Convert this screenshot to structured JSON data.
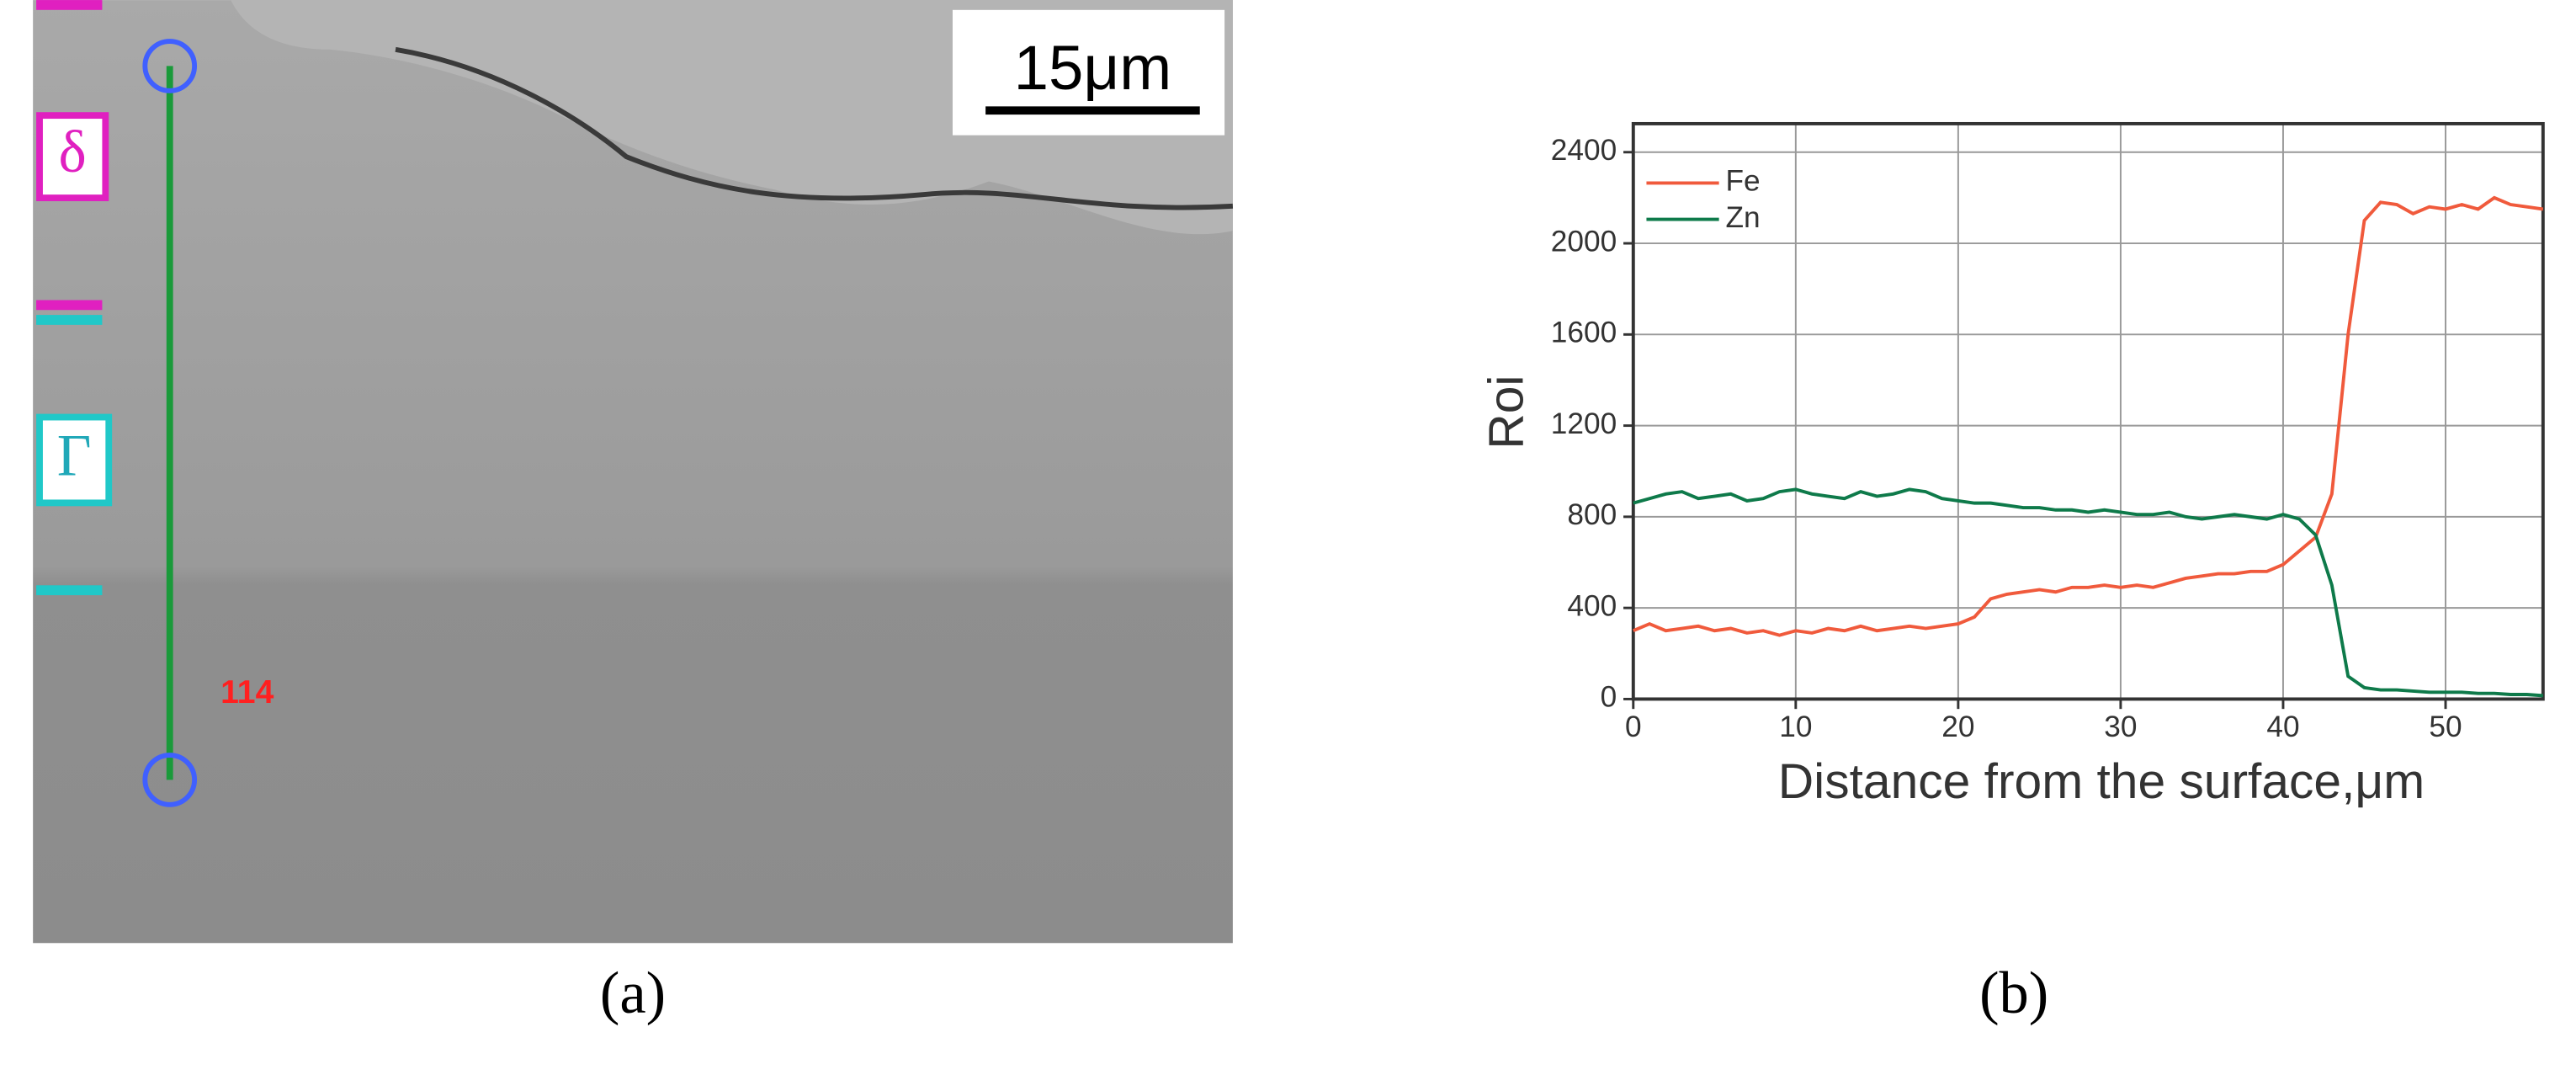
{
  "panel_a": {
    "scale_bar": "15μm",
    "phase_1": "δ",
    "phase_2": "Γ",
    "marker": "114",
    "caption": "(a)"
  },
  "chart_data": {
    "type": "line",
    "caption": "(b)",
    "x_label": "Distance from the surface,μm",
    "y_label": "Roi",
    "x": [
      0,
      1,
      2,
      3,
      4,
      5,
      6,
      7,
      8,
      9,
      10,
      11,
      12,
      13,
      14,
      15,
      16,
      17,
      18,
      19,
      20,
      21,
      22,
      23,
      24,
      25,
      26,
      27,
      28,
      29,
      30,
      31,
      32,
      33,
      34,
      35,
      36,
      37,
      38,
      39,
      40,
      41,
      42,
      43,
      44,
      45,
      46,
      47,
      48,
      49,
      50,
      51,
      52,
      53,
      54,
      55,
      56
    ],
    "series": [
      {
        "name": "Fe",
        "color": "#f05a3c",
        "values": [
          300,
          330,
          300,
          310,
          320,
          300,
          310,
          290,
          300,
          280,
          300,
          290,
          310,
          300,
          320,
          300,
          310,
          320,
          310,
          320,
          330,
          360,
          440,
          460,
          470,
          480,
          470,
          490,
          490,
          500,
          490,
          500,
          490,
          510,
          530,
          540,
          550,
          550,
          560,
          560,
          590,
          650,
          710,
          900,
          1600,
          2100,
          2180,
          2170,
          2130,
          2160,
          2150,
          2170,
          2150,
          2200,
          2170,
          2160,
          2150
        ]
      },
      {
        "name": "Zn",
        "color": "#0e7a4a",
        "values": [
          860,
          880,
          900,
          910,
          880,
          890,
          900,
          870,
          880,
          910,
          920,
          900,
          890,
          880,
          910,
          890,
          900,
          920,
          910,
          880,
          870,
          860,
          860,
          850,
          840,
          840,
          830,
          830,
          820,
          830,
          820,
          810,
          810,
          820,
          800,
          790,
          800,
          810,
          800,
          790,
          810,
          790,
          720,
          500,
          100,
          50,
          40,
          40,
          35,
          30,
          30,
          30,
          25,
          25,
          20,
          20,
          15
        ]
      }
    ],
    "xlim": [
      0,
      56
    ],
    "ylim": [
      0,
      2525
    ],
    "xticks": [
      0,
      10,
      20,
      30,
      40,
      50
    ],
    "yticks": [
      0,
      400,
      800,
      1200,
      1600,
      2000,
      2400
    ],
    "grid": true,
    "legend": "upper-left"
  }
}
